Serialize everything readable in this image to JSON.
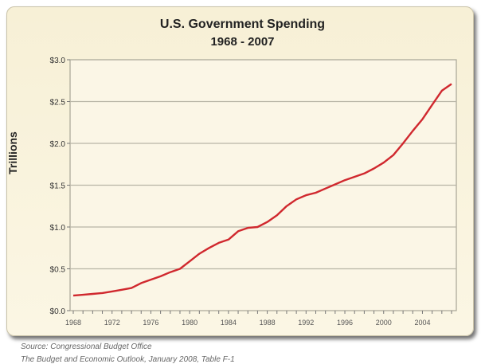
{
  "chart_data": {
    "type": "line",
    "title": "U.S. Government Spending",
    "subtitle": "1968 - 2007",
    "xlabel": "",
    "ylabel": "Trillions",
    "ylim": [
      0,
      3.0
    ],
    "xlim": [
      1968,
      2007
    ],
    "yticks": [
      "$0.0",
      "$0.5",
      "$1.0",
      "$1.5",
      "$2.0",
      "$2.5",
      "$3.0"
    ],
    "xticks": [
      "1968",
      "1972",
      "1976",
      "1980",
      "1984",
      "1988",
      "1992",
      "1996",
      "2000",
      "2004"
    ],
    "grid": true,
    "line_color": "#d0282e",
    "x": [
      1968,
      1969,
      1970,
      1971,
      1972,
      1973,
      1974,
      1975,
      1976,
      1977,
      1978,
      1979,
      1980,
      1981,
      1982,
      1983,
      1984,
      1985,
      1986,
      1987,
      1988,
      1989,
      1990,
      1991,
      1992,
      1993,
      1994,
      1995,
      1996,
      1997,
      1998,
      1999,
      2000,
      2001,
      2002,
      2003,
      2004,
      2005,
      2006,
      2007
    ],
    "values": [
      0.18,
      0.19,
      0.2,
      0.21,
      0.23,
      0.25,
      0.27,
      0.33,
      0.37,
      0.41,
      0.46,
      0.5,
      0.59,
      0.68,
      0.75,
      0.81,
      0.85,
      0.95,
      0.99,
      1.0,
      1.06,
      1.14,
      1.25,
      1.33,
      1.38,
      1.41,
      1.46,
      1.51,
      1.56,
      1.6,
      1.64,
      1.7,
      1.77,
      1.86,
      2.0,
      2.15,
      2.29,
      2.46,
      2.63,
      2.71
    ]
  },
  "source": {
    "line1": "Source: Congressional Budget Office",
    "line2": "The Budget and Economic Outlook, January 2008, Table F-1"
  }
}
